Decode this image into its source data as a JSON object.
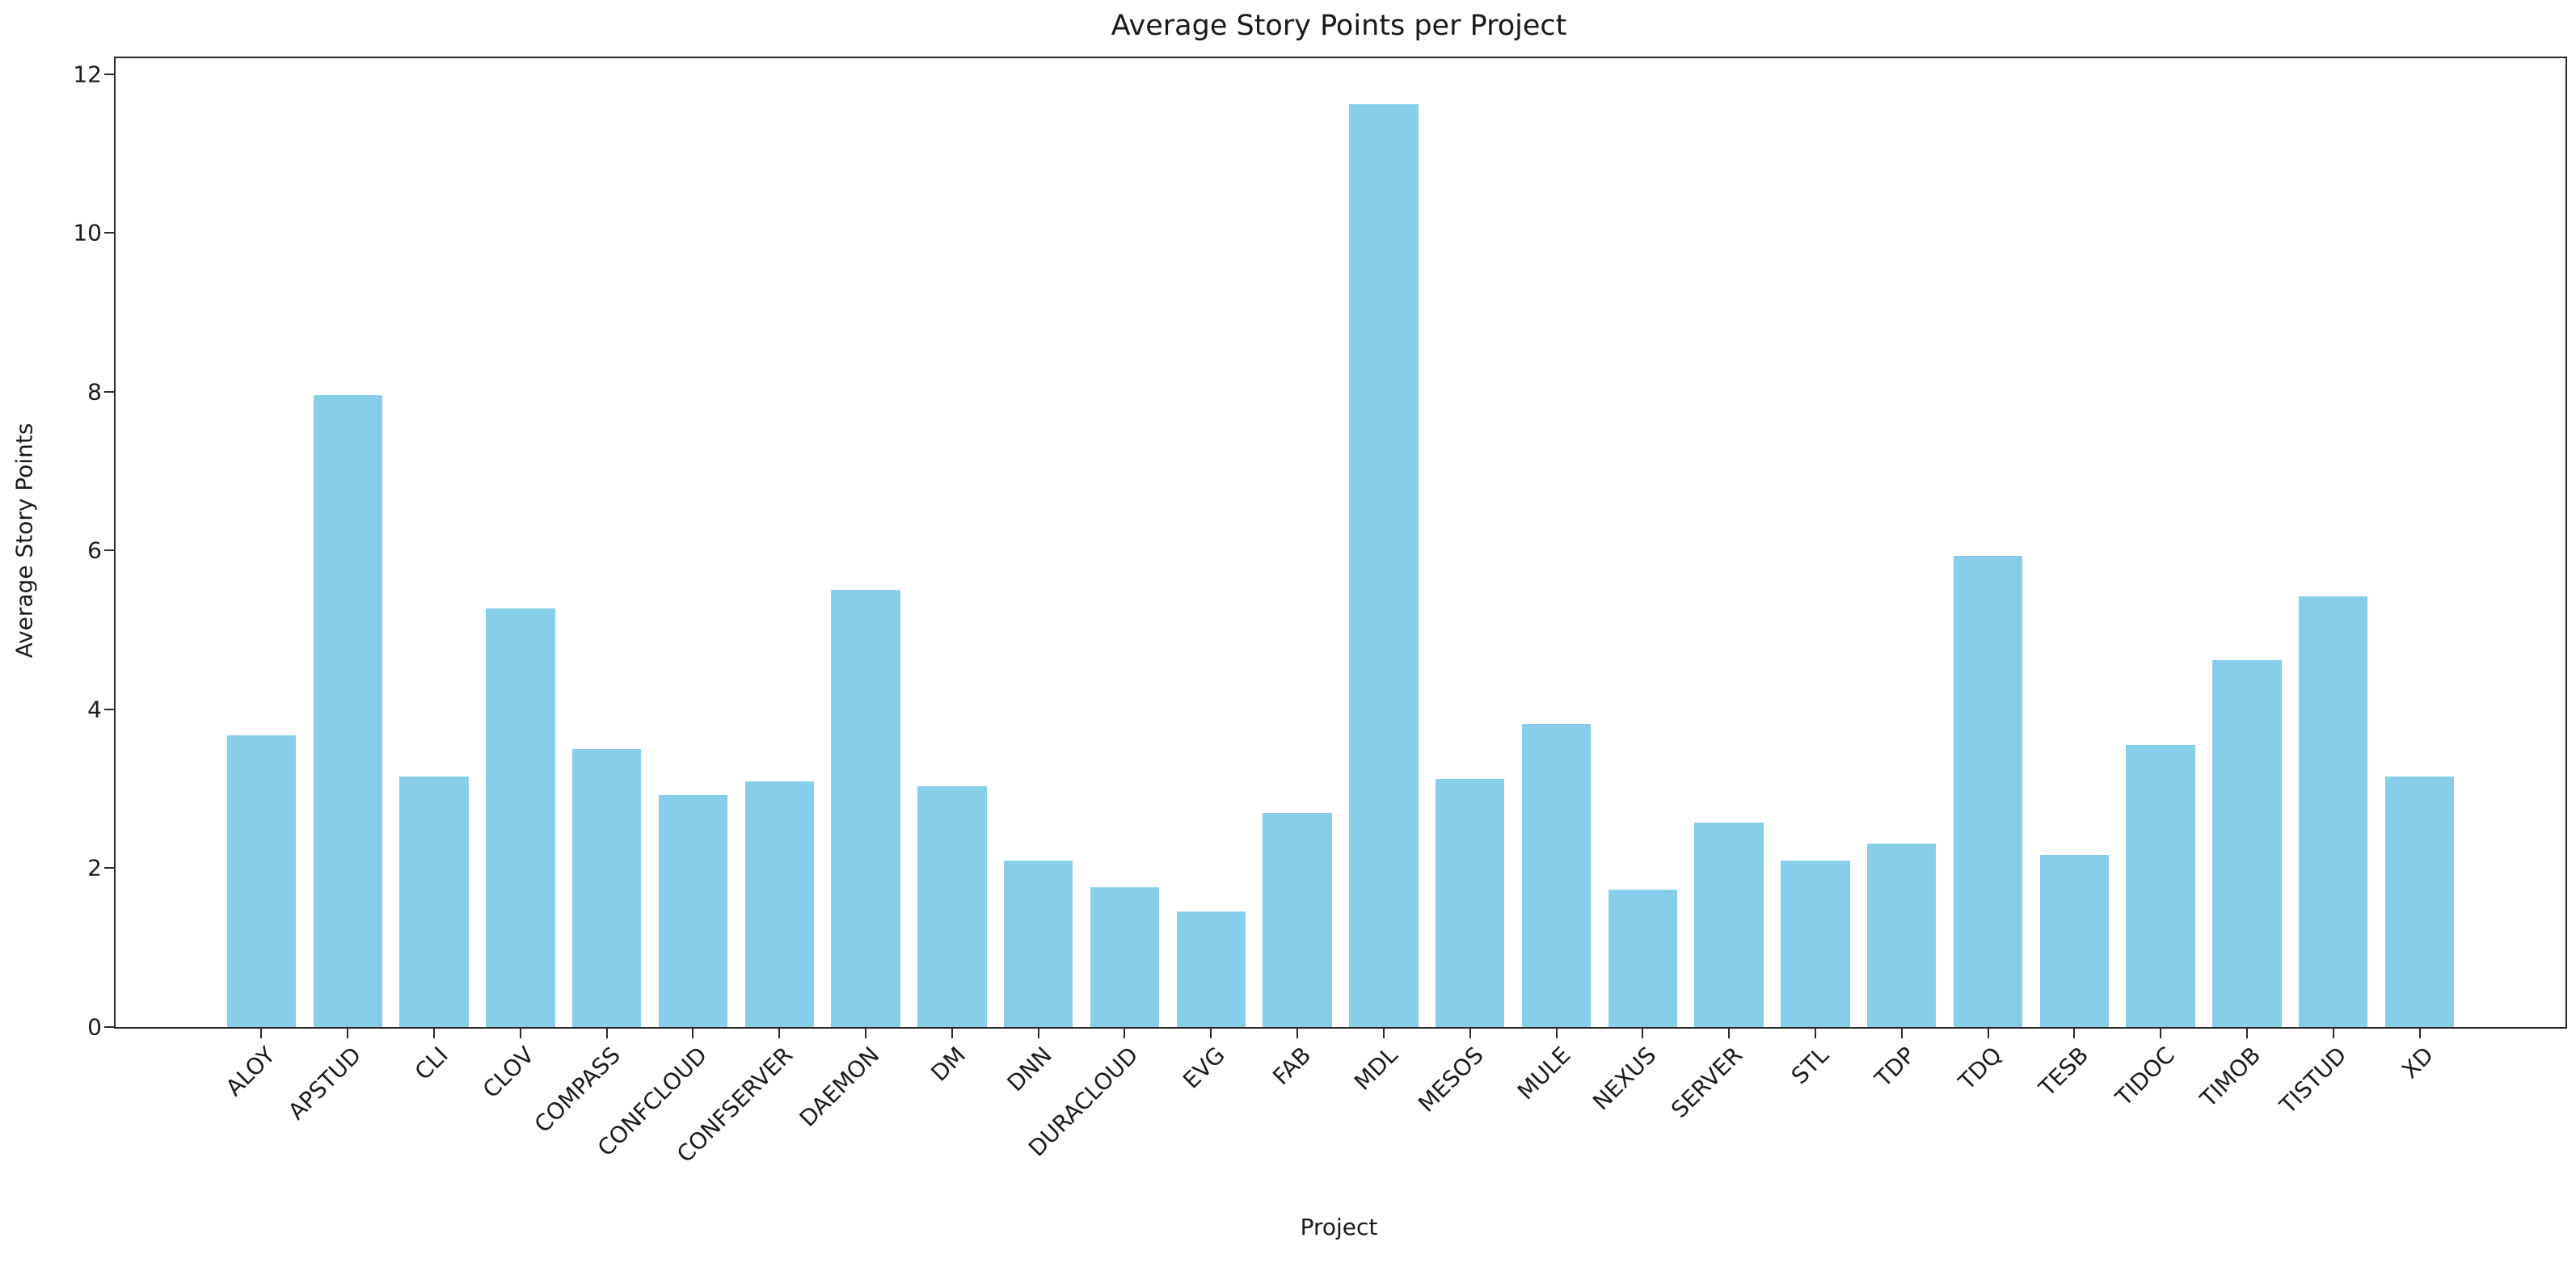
{
  "chart_data": {
    "type": "bar",
    "title": "Average Story Points per Project",
    "xlabel": "Project",
    "ylabel": "Average Story Points",
    "categories": [
      "ALOY",
      "APSTUD",
      "CLI",
      "CLOV",
      "COMPASS",
      "CONFCLOUD",
      "CONFSERVER",
      "DAEMON",
      "DM",
      "DNN",
      "DURACLOUD",
      "EVG",
      "FAB",
      "MDL",
      "MESOS",
      "MULE",
      "NEXUS",
      "SERVER",
      "STL",
      "TDP",
      "TDQ",
      "TESB",
      "TIDOC",
      "TIMOB",
      "TISTUD",
      "XD"
    ],
    "values": [
      3.67,
      7.96,
      3.15,
      5.27,
      3.5,
      2.92,
      3.09,
      5.51,
      3.03,
      2.1,
      1.76,
      1.46,
      2.7,
      11.62,
      3.12,
      3.82,
      1.73,
      2.57,
      2.1,
      2.31,
      5.93,
      2.17,
      3.55,
      4.62,
      5.42,
      3.15
    ],
    "yticks": [
      0,
      2,
      4,
      6,
      8,
      10,
      12
    ],
    "ytick_labels": [
      "0",
      "2",
      "4",
      "6",
      "8",
      "10",
      "12"
    ],
    "ylim": [
      0,
      12.2
    ],
    "bar_width_fraction": 0.8,
    "x_tick_rotation_deg": 45,
    "grid": false,
    "legend": null,
    "colors": {
      "bar": "#87CEEB",
      "axis": "#2a2a2a",
      "text": "#1a1a1a",
      "background": "#ffffff"
    }
  }
}
